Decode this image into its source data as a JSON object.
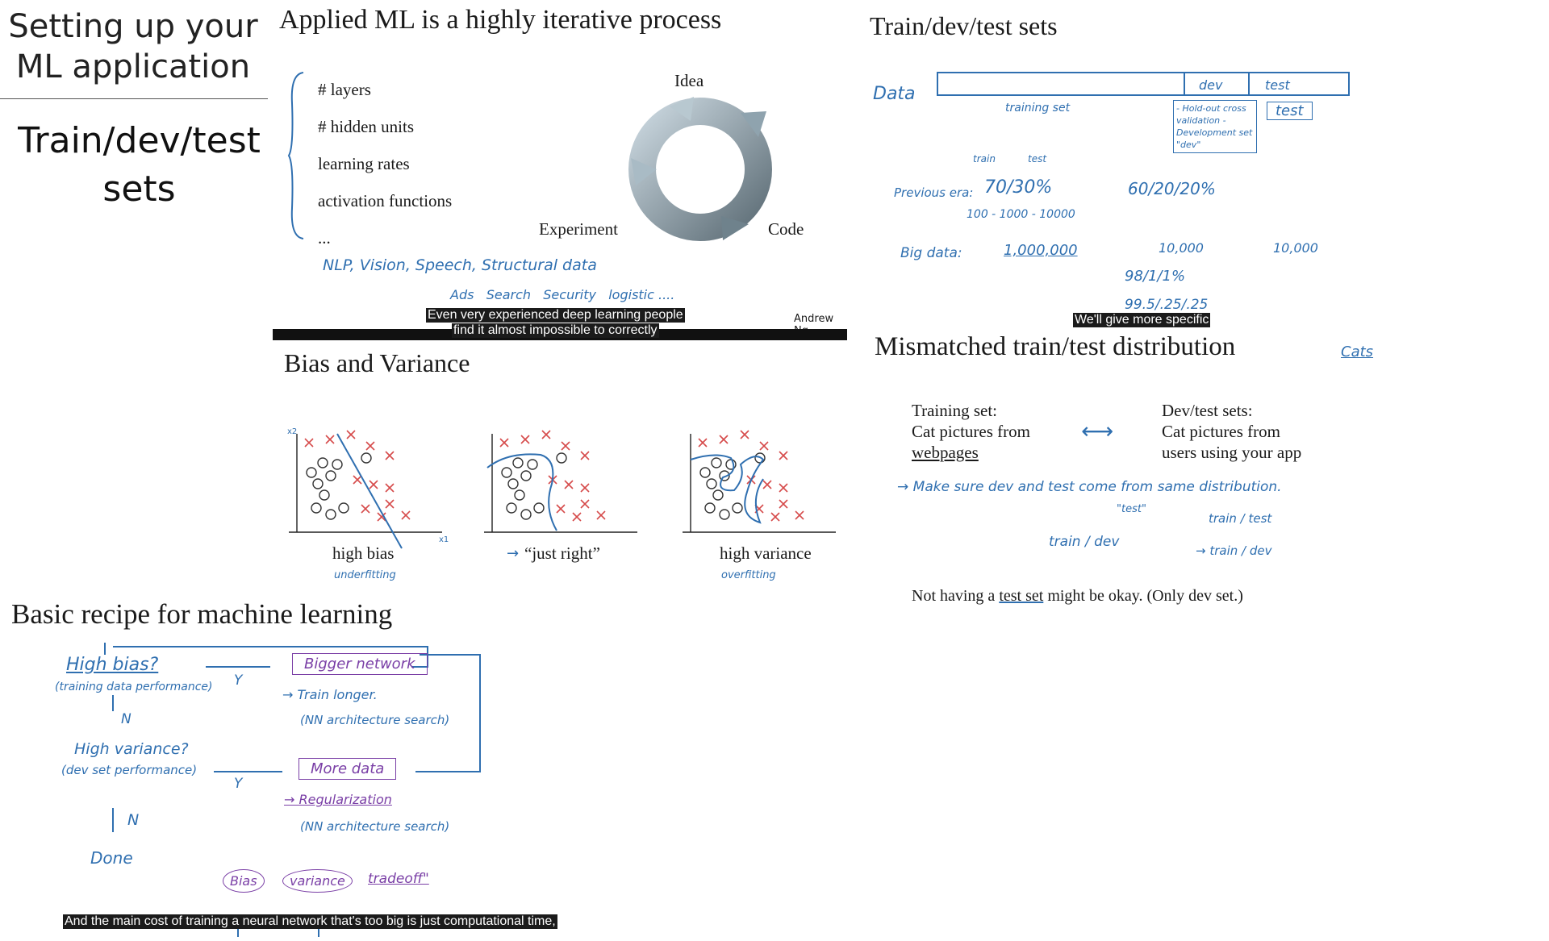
{
  "sidebar": {
    "heading_line1": "Setting up your",
    "heading_line2": "ML application",
    "topic_line1": "Train/dev/test",
    "topic_line2": "sets"
  },
  "slide_iterative": {
    "title": "Applied ML is a highly iterative process",
    "items": [
      "# layers",
      "# hidden units",
      "learning rates",
      "activation functions",
      "..."
    ],
    "cycle_labels": {
      "idea": "Idea",
      "code": "Code",
      "experiment": "Experiment"
    },
    "handwriting_line1": "NLP, Vision, Speech, Structural data",
    "handwriting_line2": "Ads   Search   Security   logistic ....",
    "credit": "Andrew Ng",
    "caption_line1": "Even very experienced deep learning people",
    "caption_line2": "find it almost impossible to correctly"
  },
  "slide_sets": {
    "title": "Train/dev/test sets",
    "data_label": "Data",
    "bar_dev": "dev",
    "bar_test": "test",
    "training_set": "training set",
    "holdout_note": "- Hold-out cross validation - Development set \"dev\"",
    "test_box": "test",
    "train_small": "train",
    "test_small": "test",
    "prev_era": "Previous era:",
    "split_7030": "70/30%",
    "split_602020": "60/20/20%",
    "range": "100 - 1000 - 10000",
    "big_data": "Big data:",
    "n_train": "1,000,000",
    "n_dev": "10,000",
    "n_test": "10,000",
    "pct_98": "98/1/1%",
    "pct_995": "99.5/.25/.25",
    "caption": "We'll give more specific"
  },
  "slide_mismatch": {
    "title": "Mismatched train/test distribution",
    "corner_note": "Cats",
    "training_head": "Training set:",
    "training_line2": "Cat pictures from",
    "training_line3": "webpages",
    "devtest_head": "Dev/test sets:",
    "devtest_line2": "Cat pictures from",
    "devtest_line3": "users using your app",
    "rule": "→ Make sure dev and test come from same distribution.",
    "test_quote": "\"test\"",
    "train_dev": "train / dev",
    "train_test": "train / test",
    "train_dev2": "→ train / dev",
    "footer_prefix": "Not having a ",
    "footer_underlined": "test set",
    "footer_suffix": " might be okay. (Only dev set.)"
  },
  "slide_bias": {
    "title": "Bias and Variance",
    "panels": [
      {
        "label": "high bias",
        "note": "underfitting"
      },
      {
        "label": "“just right”",
        "note": "→"
      },
      {
        "label": "high variance",
        "note": "overfitting"
      }
    ],
    "axis_x1": "x1",
    "axis_x2": "x2"
  },
  "slide_recipe": {
    "title": "Basic recipe for machine learning",
    "high_bias": "High bias?",
    "training_perf": "(training data performance)",
    "bigger_network": "Bigger network",
    "train_longer": "→ Train longer.",
    "nn_search1": "(NN architecture search)",
    "high_variance": "High variance?",
    "dev_perf": "(dev set performance)",
    "more_data": "More data",
    "regularization": "→ Regularization",
    "nn_search2": "(NN architecture search)",
    "done": "Done",
    "n1": "N",
    "n2": "N",
    "y1": "Y",
    "y2": "Y",
    "bias": "Bias",
    "variance": "variance",
    "tradeoff": "tradeoff\"",
    "caption": "And the main cost of training a neural network that's too big is just computational time,"
  }
}
